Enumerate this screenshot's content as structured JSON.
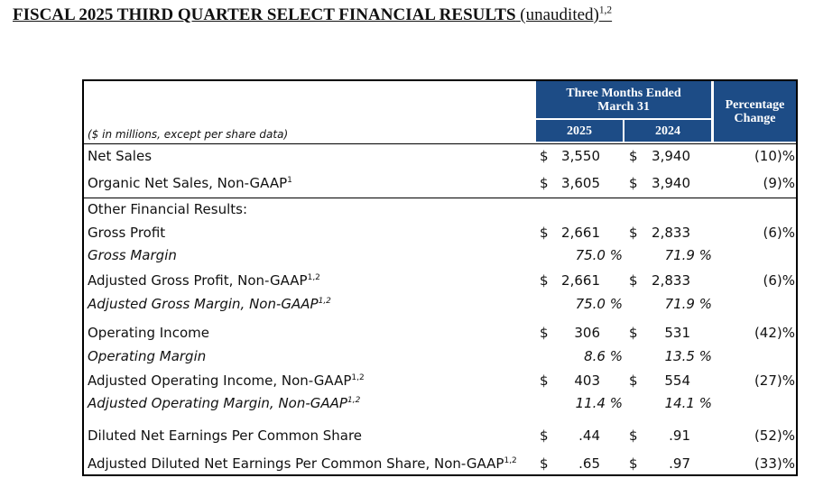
{
  "header": {
    "title": "FISCAL 2025 THIRD QUARTER SELECT FINANCIAL RESULTS",
    "title_note": "(unaudited)",
    "title_sup": "1,2"
  },
  "table": {
    "units_note": "($ in millions, except per share data)",
    "period_header": "Three Months Ended March 31",
    "change_header": "Percentage Change",
    "columns": [
      "2025",
      "2024"
    ],
    "rows": [
      {
        "label": "Net Sales",
        "values": [
          {
            "currency": "$",
            "amount": "3,550"
          },
          {
            "currency": "$",
            "amount": "3,940"
          }
        ],
        "change": "(10)%"
      },
      {
        "label": "Organic Net Sales, Non-GAAP",
        "sup": "1",
        "values": [
          {
            "currency": "$",
            "amount": "3,605"
          },
          {
            "currency": "$",
            "amount": "3,940"
          }
        ],
        "change": "(9)%"
      },
      {
        "label": "Other Financial Results:"
      },
      {
        "label": "Gross Profit",
        "values": [
          {
            "currency": "$",
            "amount": "2,661"
          },
          {
            "currency": "$",
            "amount": "2,833"
          }
        ],
        "change": "(6)%"
      },
      {
        "label": "Gross Margin",
        "italic": true,
        "values": [
          {
            "amount": "75.0 %"
          },
          {
            "amount": "71.9 %"
          }
        ]
      },
      {
        "label": "Adjusted Gross Profit, Non-GAAP",
        "sup": "1,2",
        "values": [
          {
            "currency": "$",
            "amount": "2,661"
          },
          {
            "currency": "$",
            "amount": "2,833"
          }
        ],
        "change": "(6)%"
      },
      {
        "label": "Adjusted Gross Margin, Non-GAAP",
        "sup": "1,2",
        "italic": true,
        "values": [
          {
            "amount": "75.0 %"
          },
          {
            "amount": "71.9 %"
          }
        ]
      },
      {
        "label": "Operating Income",
        "values": [
          {
            "currency": "$",
            "amount": "306"
          },
          {
            "currency": "$",
            "amount": "531"
          }
        ],
        "change": "(42)%"
      },
      {
        "label": "Operating Margin",
        "italic": true,
        "values": [
          {
            "amount": "8.6 %"
          },
          {
            "amount": "13.5 %"
          }
        ]
      },
      {
        "label": "Adjusted Operating Income, Non-GAAP",
        "sup": "1,2",
        "values": [
          {
            "currency": "$",
            "amount": "403"
          },
          {
            "currency": "$",
            "amount": "554"
          }
        ],
        "change": "(27)%"
      },
      {
        "label": "Adjusted Operating Margin, Non-GAAP",
        "sup": "1,2",
        "italic": true,
        "values": [
          {
            "amount": "11.4 %"
          },
          {
            "amount": "14.1 %"
          }
        ]
      },
      {
        "label": "Diluted Net Earnings Per Common Share",
        "values": [
          {
            "currency": "$",
            "amount": ".44"
          },
          {
            "currency": "$",
            "amount": ".91"
          }
        ],
        "change": "(52)%"
      },
      {
        "label": "Adjusted Diluted Net Earnings Per Common Share, Non-GAAP",
        "sup": "1,2",
        "values": [
          {
            "currency": "$",
            "amount": ".65"
          },
          {
            "currency": "$",
            "amount": ".97"
          }
        ],
        "change": "(33)%"
      }
    ]
  }
}
